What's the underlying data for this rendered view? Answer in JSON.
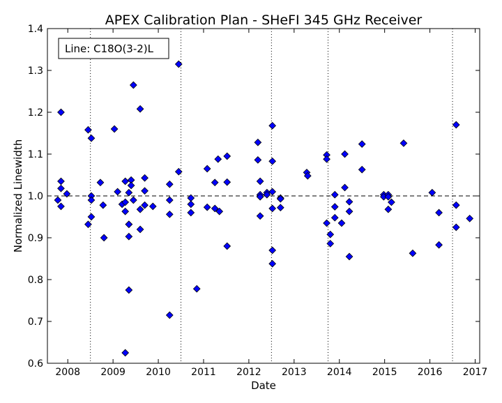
{
  "chart_data": {
    "type": "scatter",
    "title": "APEX Calibration Plan - SHeFI 345 GHz Receiver",
    "xlabel": "Date",
    "ylabel": "Normalized Linewidth",
    "xlim": [
      2007.55,
      2017.1
    ],
    "ylim": [
      0.6,
      1.4
    ],
    "x_ticks": [
      2008,
      2009,
      2010,
      2011,
      2012,
      2013,
      2014,
      2015,
      2016,
      2017
    ],
    "x_tick_labels": [
      "2008",
      "2009",
      "2010",
      "2011",
      "2012",
      "2013",
      "2014",
      "2015",
      "2016",
      "2017"
    ],
    "y_ticks": [
      0.6,
      0.7,
      0.8,
      0.9,
      1.0,
      1.1,
      1.2,
      1.3,
      1.4
    ],
    "y_tick_labels": [
      "0.6",
      "0.7",
      "0.8",
      "0.9",
      "1.0",
      "1.1",
      "1.2",
      "1.3",
      "1.4"
    ],
    "reference_line": 1.0,
    "vertical_gridlines": [
      2008.5,
      2010.5,
      2012.5,
      2013.75,
      2016.5
    ],
    "legend_text": "Line: C18O(3-2)L",
    "legend_position": "top-left",
    "marker": "diamond",
    "marker_color": "#0000ff",
    "points": [
      [
        2007.78,
        0.99
      ],
      [
        2007.85,
        1.2
      ],
      [
        2007.85,
        1.035
      ],
      [
        2007.85,
        1.018
      ],
      [
        2007.85,
        0.975
      ],
      [
        2007.98,
        1.005
      ],
      [
        2008.45,
        1.158
      ],
      [
        2008.45,
        0.932
      ],
      [
        2008.52,
        1.138
      ],
      [
        2008.52,
        1.0
      ],
      [
        2008.52,
        0.99
      ],
      [
        2008.52,
        0.95
      ],
      [
        2008.72,
        1.032
      ],
      [
        2008.78,
        0.978
      ],
      [
        2008.8,
        0.9
      ],
      [
        2009.03,
        1.16
      ],
      [
        2009.1,
        1.01
      ],
      [
        2009.2,
        0.98
      ],
      [
        2009.27,
        0.985
      ],
      [
        2009.27,
        1.035
      ],
      [
        2009.27,
        0.963
      ],
      [
        2009.27,
        0.625
      ],
      [
        2009.35,
        1.008
      ],
      [
        2009.35,
        0.932
      ],
      [
        2009.35,
        0.932
      ],
      [
        2009.35,
        0.903
      ],
      [
        2009.35,
        0.775
      ],
      [
        2009.4,
        1.038
      ],
      [
        2009.4,
        1.025
      ],
      [
        2009.45,
        1.265
      ],
      [
        2009.45,
        0.99
      ],
      [
        2009.6,
        1.208
      ],
      [
        2009.6,
        0.968
      ],
      [
        2009.6,
        0.92
      ],
      [
        2009.7,
        1.043
      ],
      [
        2009.7,
        1.012
      ],
      [
        2009.7,
        0.978
      ],
      [
        2009.88,
        0.975
      ],
      [
        2010.25,
        1.028
      ],
      [
        2010.25,
        0.99
      ],
      [
        2010.25,
        0.956
      ],
      [
        2010.25,
        0.715
      ],
      [
        2010.45,
        1.315
      ],
      [
        2010.45,
        1.058
      ],
      [
        2010.72,
        0.995
      ],
      [
        2010.72,
        0.98
      ],
      [
        2010.72,
        0.96
      ],
      [
        2010.85,
        0.778
      ],
      [
        2011.08,
        1.065
      ],
      [
        2011.08,
        0.973
      ],
      [
        2011.25,
        1.032
      ],
      [
        2011.25,
        0.97
      ],
      [
        2011.32,
        1.088
      ],
      [
        2011.35,
        0.963
      ],
      [
        2011.52,
        1.095
      ],
      [
        2011.52,
        1.033
      ],
      [
        2011.52,
        0.88
      ],
      [
        2012.2,
        1.128
      ],
      [
        2012.2,
        1.086
      ],
      [
        2012.25,
        1.035
      ],
      [
        2012.25,
        1.003
      ],
      [
        2012.25,
        0.998
      ],
      [
        2012.25,
        0.952
      ],
      [
        2012.4,
        1.008
      ],
      [
        2012.4,
        1.003
      ],
      [
        2012.52,
        1.168
      ],
      [
        2012.52,
        1.083
      ],
      [
        2012.52,
        1.01
      ],
      [
        2012.52,
        0.97
      ],
      [
        2012.52,
        0.87
      ],
      [
        2012.52,
        0.838
      ],
      [
        2012.7,
        0.995
      ],
      [
        2012.7,
        0.993
      ],
      [
        2012.7,
        0.972
      ],
      [
        2013.28,
        1.056
      ],
      [
        2013.3,
        1.048
      ],
      [
        2013.72,
        1.098
      ],
      [
        2013.72,
        1.088
      ],
      [
        2013.72,
        0.935
      ],
      [
        2013.8,
        0.908
      ],
      [
        2013.8,
        0.886
      ],
      [
        2013.9,
        1.003
      ],
      [
        2013.9,
        0.974
      ],
      [
        2013.9,
        0.948
      ],
      [
        2014.05,
        0.935
      ],
      [
        2014.12,
        1.1
      ],
      [
        2014.12,
        1.02
      ],
      [
        2014.22,
        0.986
      ],
      [
        2014.22,
        0.963
      ],
      [
        2014.22,
        0.855
      ],
      [
        2014.5,
        1.124
      ],
      [
        2014.5,
        1.063
      ],
      [
        2014.98,
        1.003
      ],
      [
        2014.98,
        0.998
      ],
      [
        2015.08,
        1.003
      ],
      [
        2015.08,
        0.998
      ],
      [
        2015.08,
        0.968
      ],
      [
        2015.15,
        0.985
      ],
      [
        2015.42,
        1.126
      ],
      [
        2015.62,
        0.863
      ],
      [
        2016.05,
        1.008
      ],
      [
        2016.2,
        0.96
      ],
      [
        2016.2,
        0.883
      ],
      [
        2016.58,
        1.17
      ],
      [
        2016.58,
        0.978
      ],
      [
        2016.58,
        0.925
      ],
      [
        2016.88,
        0.946
      ]
    ]
  }
}
